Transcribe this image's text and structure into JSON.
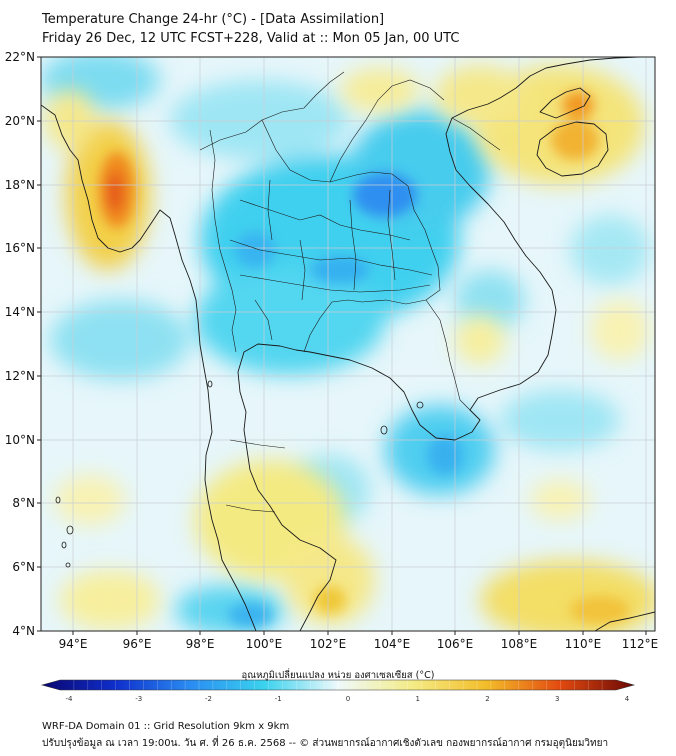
{
  "header": {
    "title_line1": "Temperature Change 24-hr (°C) - [Data Assimilation]",
    "title_line2": "Friday 26 Dec, 12 UTC FCST+228, Valid at :: Mon 05 Jan, 00 UTC"
  },
  "map": {
    "lat_labels": [
      "22°N",
      "20°N",
      "18°N",
      "16°N",
      "14°N",
      "12°N",
      "10°N",
      "8°N",
      "6°N",
      "4°N"
    ],
    "lon_labels": [
      "94°E",
      "96°E",
      "98°E",
      "100°E",
      "102°E",
      "104°E",
      "106°E",
      "108°E",
      "110°E",
      "112°E"
    ]
  },
  "colorbar": {
    "label": "อุณหภูมิเปลี่ยนแปลง หน่วย องศาเซลเซียส (°C)",
    "ticks": [
      "-4",
      "-3",
      "-2",
      "-1",
      "0",
      "1",
      "2",
      "3",
      "4"
    ],
    "colors": {
      "cold": "#0d0a8a",
      "blue": "#1e6ef0",
      "cyan": "#3ad2ee",
      "pale": "#e9f8fb",
      "yellow": "#f4ec86",
      "orange": "#f3a21f",
      "red": "#d9150d",
      "dark_red": "#7a0b06"
    }
  },
  "footer": {
    "line1": "WRF-DA Domain 01 :: Grid Resolution 9km x 9km",
    "line2": "ปรับปรุงข้อมูล ณ เวลา 19:00น. วัน ศ. ที่ 26 ธ.ค. 2568 -- © ส่วนพยากรณ์อากาศเชิงตัวเลข กองพยากรณ์อากาศ กรมอุตุนิยมวิทยา"
  }
}
